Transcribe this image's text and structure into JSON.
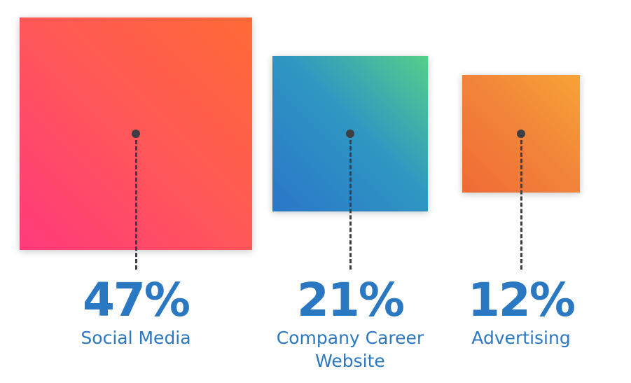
{
  "chart_data": {
    "type": "bar",
    "title": "",
    "categories": [
      "Social Media",
      "Company Career Website",
      "Advertising"
    ],
    "values": [
      47,
      21,
      12
    ],
    "value_labels": [
      "47%",
      "21%",
      "12%"
    ],
    "label_lines": [
      [
        "Social Media"
      ],
      [
        "Company Career",
        "Website"
      ],
      [
        "Advertising"
      ]
    ],
    "encoding": "square area proportional to value",
    "colors": {
      "text": "#2a78c2",
      "connector": "#3e3f45",
      "social_media": [
        "#ff3a7c",
        "#ff6a35"
      ],
      "company_career_website": [
        "#2a76c9",
        "#54cf8a"
      ],
      "advertising": [
        "#f06a35",
        "#f7a436"
      ]
    }
  }
}
